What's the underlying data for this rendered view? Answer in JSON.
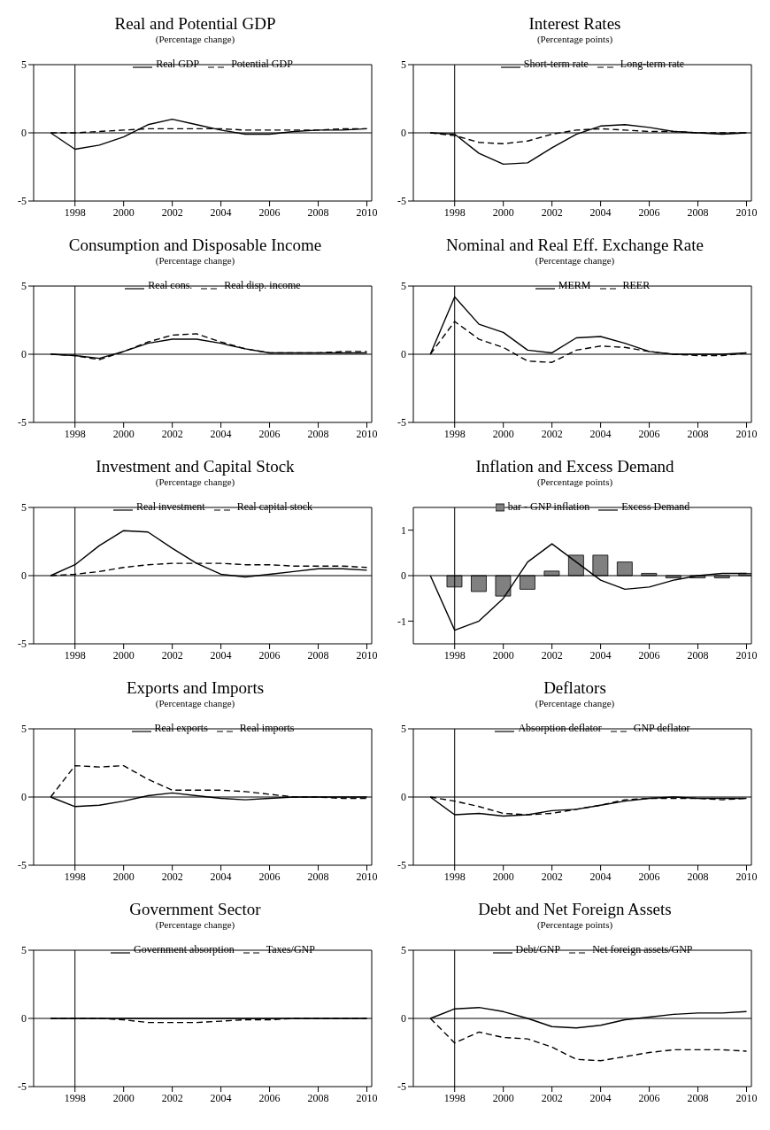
{
  "chart_data": [
    {
      "type": "line",
      "title": "Real and Potential GDP",
      "subtitle": "(Percentage change)",
      "x": [
        1997,
        1998,
        1999,
        2000,
        2001,
        2002,
        2003,
        2004,
        2005,
        2006,
        2007,
        2008,
        2009,
        2010
      ],
      "xlim": [
        1996.3,
        2010.2
      ],
      "xticks": [
        1998,
        2000,
        2002,
        2004,
        2006,
        2008,
        2010
      ],
      "ylim": [
        -5,
        5
      ],
      "yticks": [
        -5,
        0,
        5
      ],
      "legend": "top",
      "marker": "none",
      "grid": false,
      "ref_lines": [
        {
          "axis": "x",
          "value": 1998
        },
        {
          "axis": "y",
          "value": 0
        }
      ],
      "series": [
        {
          "name": "Real GDP",
          "color": "#000000",
          "line_style": "solid",
          "values": [
            0,
            -1.2,
            -0.9,
            -0.3,
            0.6,
            1.0,
            0.6,
            0.2,
            -0.1,
            -0.1,
            0.1,
            0.2,
            0.2,
            0.3
          ]
        },
        {
          "name": "Potential GDP",
          "color": "#000000",
          "line_style": "dashed",
          "values": [
            0,
            0,
            0.1,
            0.2,
            0.3,
            0.3,
            0.3,
            0.3,
            0.2,
            0.2,
            0.2,
            0.2,
            0.3,
            0.3
          ]
        }
      ]
    },
    {
      "type": "line",
      "title": "Interest Rates",
      "subtitle": "(Percentage points)",
      "x": [
        1997,
        1998,
        1999,
        2000,
        2001,
        2002,
        2003,
        2004,
        2005,
        2006,
        2007,
        2008,
        2009,
        2010
      ],
      "xlim": [
        1996.3,
        2010.2
      ],
      "xticks": [
        1998,
        2000,
        2002,
        2004,
        2006,
        2008,
        2010
      ],
      "ylim": [
        -5,
        5
      ],
      "yticks": [
        -5,
        0,
        5
      ],
      "legend": "top",
      "marker": "none",
      "grid": false,
      "ref_lines": [
        {
          "axis": "x",
          "value": 1998
        },
        {
          "axis": "y",
          "value": 0
        }
      ],
      "series": [
        {
          "name": "Short-term rate",
          "color": "#000000",
          "line_style": "solid",
          "values": [
            0,
            -0.1,
            -1.5,
            -2.3,
            -2.2,
            -1.1,
            -0.1,
            0.5,
            0.6,
            0.4,
            0.1,
            0,
            -0.1,
            0
          ]
        },
        {
          "name": "Long-term rate",
          "color": "#000000",
          "line_style": "dashed",
          "values": [
            0,
            -0.2,
            -0.7,
            -0.8,
            -0.6,
            -0.1,
            0.2,
            0.3,
            0.2,
            0.1,
            0.1,
            0,
            0,
            0
          ]
        }
      ]
    },
    {
      "type": "line",
      "title": "Consumption and Disposable Income",
      "subtitle": "(Percentage change)",
      "x": [
        1997,
        1998,
        1999,
        2000,
        2001,
        2002,
        2003,
        2004,
        2005,
        2006,
        2007,
        2008,
        2009,
        2010
      ],
      "xlim": [
        1996.3,
        2010.2
      ],
      "xticks": [
        1998,
        2000,
        2002,
        2004,
        2006,
        2008,
        2010
      ],
      "ylim": [
        -5,
        5
      ],
      "yticks": [
        -5,
        0,
        5
      ],
      "legend": "top",
      "marker": "none",
      "grid": false,
      "ref_lines": [
        {
          "axis": "x",
          "value": 1998
        },
        {
          "axis": "y",
          "value": 0
        }
      ],
      "series": [
        {
          "name": "Real cons.",
          "color": "#000000",
          "line_style": "solid",
          "values": [
            0,
            -0.1,
            -0.3,
            0.2,
            0.8,
            1.1,
            1.1,
            0.8,
            0.4,
            0.1,
            0.1,
            0.1,
            0.1,
            0.1
          ]
        },
        {
          "name": "Real disp. income",
          "color": "#000000",
          "line_style": "dashed",
          "values": [
            0,
            -0.1,
            -0.4,
            0.2,
            0.9,
            1.4,
            1.5,
            0.9,
            0.4,
            0.1,
            0.1,
            0.1,
            0.2,
            0.2
          ]
        }
      ]
    },
    {
      "type": "line",
      "title": "Nominal and Real Eff. Exchange Rate",
      "subtitle": "(Percentage change)",
      "x": [
        1997,
        1998,
        1999,
        2000,
        2001,
        2002,
        2003,
        2004,
        2005,
        2006,
        2007,
        2008,
        2009,
        2010
      ],
      "xlim": [
        1996.3,
        2010.2
      ],
      "xticks": [
        1998,
        2000,
        2002,
        2004,
        2006,
        2008,
        2010
      ],
      "ylim": [
        -5,
        5
      ],
      "yticks": [
        -5,
        0,
        5
      ],
      "legend": "top",
      "marker": "none",
      "grid": false,
      "ref_lines": [
        {
          "axis": "x",
          "value": 1998
        },
        {
          "axis": "y",
          "value": 0
        }
      ],
      "series": [
        {
          "name": "MERM",
          "color": "#000000",
          "line_style": "solid",
          "values": [
            0,
            4.2,
            2.2,
            1.6,
            0.3,
            0.1,
            1.2,
            1.3,
            0.8,
            0.2,
            0,
            0,
            0,
            0.1
          ]
        },
        {
          "name": "REER",
          "color": "#000000",
          "line_style": "dashed",
          "values": [
            0,
            2.4,
            1.1,
            0.5,
            -0.5,
            -0.6,
            0.3,
            0.6,
            0.5,
            0.2,
            0,
            -0.1,
            -0.1,
            0.1
          ]
        }
      ]
    },
    {
      "type": "line",
      "title": "Investment and Capital Stock",
      "subtitle": "(Percentage change)",
      "x": [
        1997,
        1998,
        1999,
        2000,
        2001,
        2002,
        2003,
        2004,
        2005,
        2006,
        2007,
        2008,
        2009,
        2010
      ],
      "xlim": [
        1996.3,
        2010.2
      ],
      "xticks": [
        1998,
        2000,
        2002,
        2004,
        2006,
        2008,
        2010
      ],
      "ylim": [
        -5,
        5
      ],
      "yticks": [
        -5,
        0,
        5
      ],
      "legend": "top",
      "marker": "none",
      "grid": false,
      "ref_lines": [
        {
          "axis": "x",
          "value": 1998
        },
        {
          "axis": "y",
          "value": 0
        }
      ],
      "series": [
        {
          "name": "Real investment",
          "color": "#000000",
          "line_style": "solid",
          "values": [
            0,
            0.8,
            2.2,
            3.3,
            3.2,
            2.0,
            0.9,
            0.1,
            -0.1,
            0.1,
            0.3,
            0.5,
            0.5,
            0.4
          ]
        },
        {
          "name": "Real capital stock",
          "color": "#000000",
          "line_style": "dashed",
          "values": [
            0,
            0.1,
            0.3,
            0.6,
            0.8,
            0.9,
            0.9,
            0.9,
            0.8,
            0.8,
            0.7,
            0.7,
            0.7,
            0.6
          ]
        }
      ]
    },
    {
      "type": "line",
      "title": "Inflation and Excess Demand",
      "subtitle": "(Percentage points)",
      "x": [
        1997,
        1998,
        1999,
        2000,
        2001,
        2002,
        2003,
        2004,
        2005,
        2006,
        2007,
        2008,
        2009,
        2010
      ],
      "xlim": [
        1996.3,
        2010.2
      ],
      "xticks": [
        1998,
        2000,
        2002,
        2004,
        2006,
        2008,
        2010
      ],
      "ylim": [
        -1.5,
        1.5
      ],
      "yticks": [
        -1,
        0,
        1
      ],
      "legend": "top",
      "marker": "none",
      "grid": false,
      "ref_lines": [
        {
          "axis": "x",
          "value": 1998
        },
        {
          "axis": "y",
          "value": 0
        }
      ],
      "series": [
        {
          "type": "bar",
          "name": "bar - GNP inflation",
          "color": "#808080",
          "x": [
            1998,
            1999,
            2000,
            2001,
            2002,
            2003,
            2004,
            2005,
            2006,
            2007,
            2008,
            2009,
            2010
          ],
          "values": [
            -0.25,
            -0.35,
            -0.45,
            -0.3,
            0.1,
            0.45,
            0.45,
            0.3,
            0.05,
            -0.05,
            -0.05,
            -0.05,
            0.05
          ]
        },
        {
          "name": "Excess Demand",
          "color": "#000000",
          "line_style": "solid",
          "values": [
            0,
            -1.2,
            -1.0,
            -0.5,
            0.3,
            0.7,
            0.3,
            -0.1,
            -0.3,
            -0.25,
            -0.1,
            0,
            0.05,
            0.05
          ]
        }
      ]
    },
    {
      "type": "line",
      "title": "Exports and Imports",
      "subtitle": "(Percentage change)",
      "x": [
        1997,
        1998,
        1999,
        2000,
        2001,
        2002,
        2003,
        2004,
        2005,
        2006,
        2007,
        2008,
        2009,
        2010
      ],
      "xlim": [
        1996.3,
        2010.2
      ],
      "xticks": [
        1998,
        2000,
        2002,
        2004,
        2006,
        2008,
        2010
      ],
      "ylim": [
        -5,
        5
      ],
      "yticks": [
        -5,
        0,
        5
      ],
      "legend": "top",
      "marker": "none",
      "grid": false,
      "ref_lines": [
        {
          "axis": "x",
          "value": 1998
        },
        {
          "axis": "y",
          "value": 0
        }
      ],
      "series": [
        {
          "name": "Real exports",
          "color": "#000000",
          "line_style": "solid",
          "values": [
            0,
            -0.7,
            -0.6,
            -0.3,
            0.1,
            0.3,
            0.1,
            -0.1,
            -0.2,
            -0.1,
            0,
            0,
            0,
            0
          ]
        },
        {
          "name": "Real imports",
          "color": "#000000",
          "line_style": "dashed",
          "values": [
            0,
            2.3,
            2.2,
            2.3,
            1.3,
            0.5,
            0.5,
            0.5,
            0.4,
            0.2,
            0,
            0,
            -0.1,
            -0.1
          ]
        }
      ]
    },
    {
      "type": "line",
      "title": "Deflators",
      "subtitle": "(Percentage change)",
      "x": [
        1997,
        1998,
        1999,
        2000,
        2001,
        2002,
        2003,
        2004,
        2005,
        2006,
        2007,
        2008,
        2009,
        2010
      ],
      "xlim": [
        1996.3,
        2010.2
      ],
      "xticks": [
        1998,
        2000,
        2002,
        2004,
        2006,
        2008,
        2010
      ],
      "ylim": [
        -5,
        5
      ],
      "yticks": [
        -5,
        0,
        5
      ],
      "legend": "top",
      "marker": "none",
      "grid": false,
      "ref_lines": [
        {
          "axis": "x",
          "value": 1998
        },
        {
          "axis": "y",
          "value": 0
        }
      ],
      "series": [
        {
          "name": "Absorption deflator",
          "color": "#000000",
          "line_style": "solid",
          "values": [
            0,
            -1.3,
            -1.2,
            -1.4,
            -1.3,
            -1.0,
            -0.9,
            -0.6,
            -0.3,
            -0.1,
            0,
            -0.1,
            -0.1,
            -0.1
          ]
        },
        {
          "name": "GNP deflator",
          "color": "#000000",
          "line_style": "dashed",
          "values": [
            0,
            -0.3,
            -0.7,
            -1.2,
            -1.3,
            -1.2,
            -0.9,
            -0.6,
            -0.2,
            -0.1,
            -0.1,
            -0.1,
            -0.2,
            -0.1
          ]
        }
      ]
    },
    {
      "type": "line",
      "title": "Government Sector",
      "subtitle": "(Percentage change)",
      "x": [
        1997,
        1998,
        1999,
        2000,
        2001,
        2002,
        2003,
        2004,
        2005,
        2006,
        2007,
        2008,
        2009,
        2010
      ],
      "xlim": [
        1996.3,
        2010.2
      ],
      "xticks": [
        1998,
        2000,
        2002,
        2004,
        2006,
        2008,
        2010
      ],
      "ylim": [
        -5,
        5
      ],
      "yticks": [
        -5,
        0,
        5
      ],
      "legend": "top",
      "marker": "none",
      "grid": false,
      "ref_lines": [
        {
          "axis": "x",
          "value": 1998
        },
        {
          "axis": "y",
          "value": 0
        }
      ],
      "series": [
        {
          "name": "Government absorption",
          "color": "#000000",
          "line_style": "solid",
          "values": [
            0,
            0,
            0,
            0,
            0,
            0,
            0,
            0,
            0,
            0,
            0,
            0,
            0,
            0
          ]
        },
        {
          "name": "Taxes/GNP",
          "color": "#000000",
          "line_style": "dashed",
          "values": [
            0,
            0,
            0,
            -0.1,
            -0.3,
            -0.3,
            -0.3,
            -0.2,
            -0.1,
            -0.1,
            0,
            0,
            0,
            0
          ]
        }
      ]
    },
    {
      "type": "line",
      "title": "Debt and Net Foreign Assets",
      "subtitle": "(Percentage points)",
      "x": [
        1997,
        1998,
        1999,
        2000,
        2001,
        2002,
        2003,
        2004,
        2005,
        2006,
        2007,
        2008,
        2009,
        2010
      ],
      "xlim": [
        1996.3,
        2010.2
      ],
      "xticks": [
        1998,
        2000,
        2002,
        2004,
        2006,
        2008,
        2010
      ],
      "ylim": [
        -5,
        5
      ],
      "yticks": [
        -5,
        0,
        5
      ],
      "legend": "top",
      "marker": "none",
      "grid": false,
      "ref_lines": [
        {
          "axis": "x",
          "value": 1998
        },
        {
          "axis": "y",
          "value": 0
        }
      ],
      "series": [
        {
          "name": "Debt/GNP",
          "color": "#000000",
          "line_style": "solid",
          "values": [
            0,
            0.7,
            0.8,
            0.5,
            0,
            -0.6,
            -0.7,
            -0.5,
            -0.1,
            0.1,
            0.3,
            0.4,
            0.4,
            0.5
          ]
        },
        {
          "name": "Net foreign assets/GNP",
          "color": "#000000",
          "line_style": "dashed",
          "values": [
            0,
            -1.8,
            -1.0,
            -1.4,
            -1.5,
            -2.1,
            -3.0,
            -3.1,
            -2.8,
            -2.5,
            -2.3,
            -2.3,
            -2.3,
            -2.4
          ]
        }
      ]
    }
  ]
}
